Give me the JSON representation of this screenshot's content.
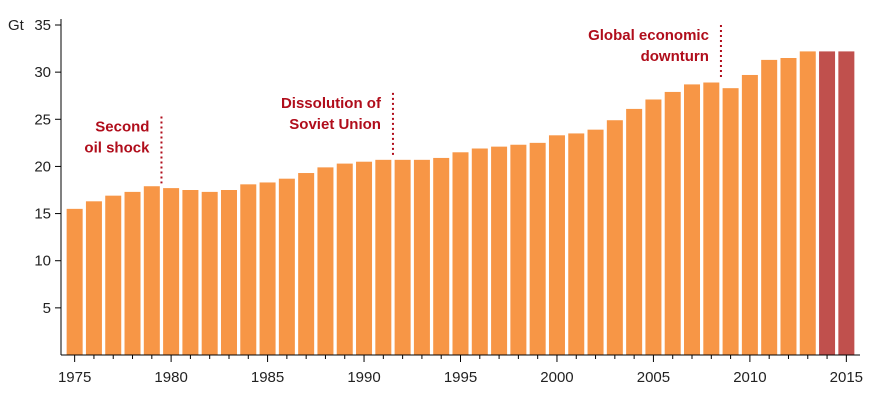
{
  "chart_data": {
    "type": "bar",
    "unit_label": "Gt",
    "x": [
      1975,
      1976,
      1977,
      1978,
      1979,
      1980,
      1981,
      1982,
      1983,
      1984,
      1985,
      1986,
      1987,
      1988,
      1989,
      1990,
      1991,
      1992,
      1993,
      1994,
      1995,
      1996,
      1997,
      1998,
      1999,
      2000,
      2001,
      2002,
      2003,
      2004,
      2005,
      2006,
      2007,
      2008,
      2009,
      2010,
      2011,
      2012,
      2013,
      2014,
      2015
    ],
    "values": [
      15.5,
      16.3,
      16.9,
      17.3,
      17.9,
      17.7,
      17.5,
      17.3,
      17.5,
      18.1,
      18.3,
      18.7,
      19.3,
      19.9,
      20.3,
      20.5,
      20.7,
      20.7,
      20.7,
      20.9,
      21.5,
      21.9,
      22.1,
      22.3,
      22.5,
      23.3,
      23.5,
      23.9,
      24.9,
      26.1,
      27.1,
      27.9,
      28.7,
      28.9,
      28.3,
      29.7,
      31.3,
      31.5,
      32.2,
      32.2,
      32.2
    ],
    "highlighted_years": [
      2014,
      2015
    ],
    "ylim": [
      0,
      35
    ],
    "yticks": [
      5,
      10,
      15,
      20,
      25,
      30,
      35
    ],
    "xticks": [
      1975,
      1980,
      1985,
      1990,
      1995,
      2000,
      2005,
      2010,
      2015
    ],
    "grid": false,
    "colors": {
      "bar": "#f79646",
      "highlight": "#c0504d",
      "annotation": "#b00d1b",
      "axis": "#000000"
    },
    "annotations": [
      {
        "lines": [
          "Second",
          "oil shock"
        ],
        "year": 1979.5,
        "y_top": 25.3,
        "y_bottom": 18.2
      },
      {
        "lines": [
          "Dissolution of",
          "Soviet Union"
        ],
        "year": 1991.5,
        "y_top": 27.8,
        "y_bottom": 21.0
      },
      {
        "lines": [
          "Global economic",
          "downturn"
        ],
        "year": 2008.5,
        "y_top": 35.0,
        "y_bottom": 29.2
      }
    ]
  }
}
